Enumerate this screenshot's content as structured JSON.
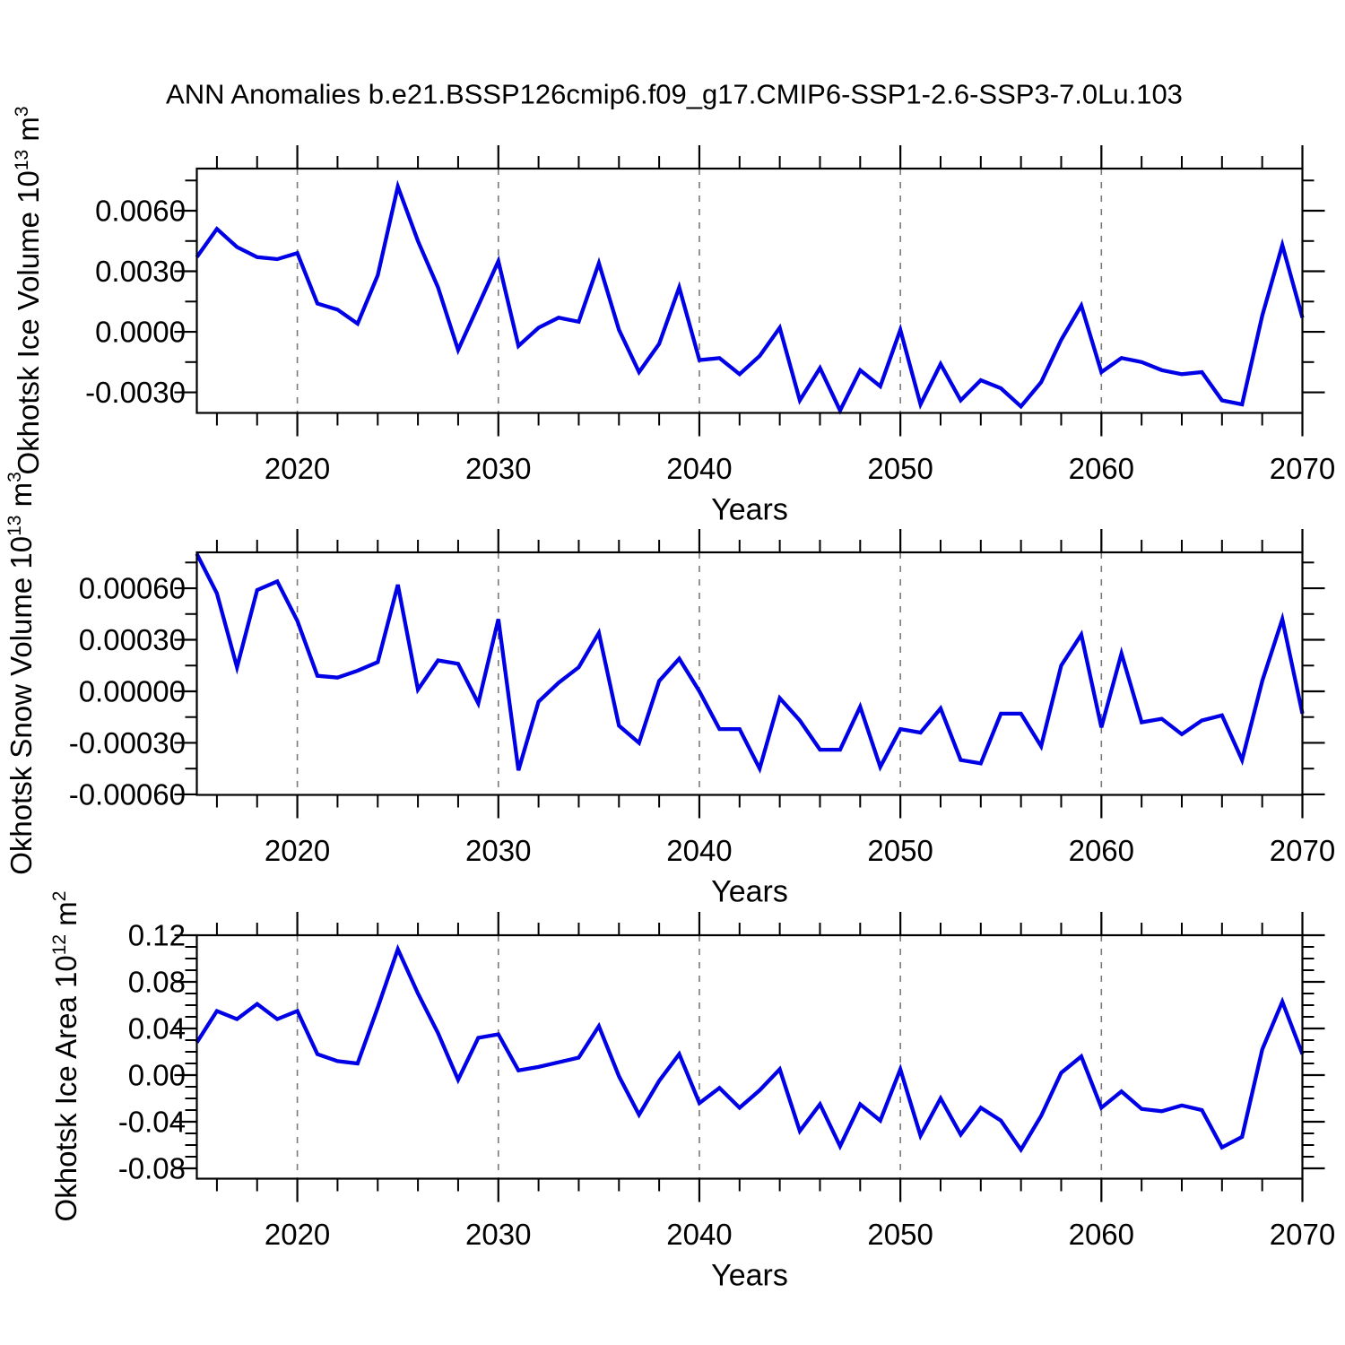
{
  "title": "ANN Anomalies b.e21.BSSP126cmip6.f09_g17.CMIP6-SSP1-2.6-SSP3-7.0Lu.103",
  "colors": {
    "line": "#0000e6",
    "axis": "#000000",
    "grid": "#7a7a7a",
    "background": "#ffffff"
  },
  "x_axis": {
    "label": "Years",
    "range": [
      2015,
      2070
    ],
    "major_tick_years": [
      2020,
      2030,
      2040,
      2050,
      2060,
      2070
    ],
    "major_tick_labels": [
      "2020",
      "2030",
      "2040",
      "2050",
      "2060",
      "2070"
    ],
    "minor_tick_step": 2,
    "grid_years": [
      2020,
      2030,
      2040,
      2050,
      2060
    ]
  },
  "years": [
    2015,
    2016,
    2017,
    2018,
    2019,
    2020,
    2021,
    2022,
    2023,
    2024,
    2025,
    2026,
    2027,
    2028,
    2029,
    2030,
    2031,
    2032,
    2033,
    2034,
    2035,
    2036,
    2037,
    2038,
    2039,
    2040,
    2041,
    2042,
    2043,
    2044,
    2045,
    2046,
    2047,
    2048,
    2049,
    2050,
    2051,
    2052,
    2053,
    2054,
    2055,
    2056,
    2057,
    2058,
    2059,
    2060,
    2061,
    2062,
    2063,
    2064,
    2065,
    2066,
    2067,
    2068,
    2069,
    2070
  ],
  "chart_data": [
    {
      "type": "line",
      "name": "okhotsk-ice-volume",
      "ylabel_prefix": "Okhotsk Ice Volume 10",
      "ylabel_exp": "13",
      "ylabel_unit": " m",
      "ylabel_unit_exp": "3",
      "xlabel": "Years",
      "ylim": [
        -0.00402,
        0.00809
      ],
      "y_major_ticks": [
        {
          "label": "0.0060",
          "value": 0.006
        },
        {
          "label": "0.0030",
          "value": 0.003
        },
        {
          "label": "0.0000",
          "value": 0.0
        },
        {
          "label": "-0.0030",
          "value": -0.003
        }
      ],
      "y_minor_tick_values": [
        0.0075,
        0.0045,
        0.0015,
        -0.0015
      ],
      "values": [
        0.0037,
        0.0051,
        0.0042,
        0.0037,
        0.0036,
        0.0039,
        0.0014,
        0.0011,
        0.0004,
        0.0028,
        0.0072,
        0.0045,
        0.0022,
        -0.0009,
        0.0013,
        0.0035,
        -0.0007,
        0.0002,
        0.0007,
        0.0005,
        0.0034,
        0.0001,
        -0.002,
        -0.0006,
        0.0022,
        -0.0014,
        -0.0013,
        -0.0021,
        -0.0012,
        0.0002,
        -0.0034,
        -0.0018,
        -0.0039,
        -0.0019,
        -0.0027,
        0.0001,
        -0.0036,
        -0.0016,
        -0.0034,
        -0.0024,
        -0.0028,
        -0.0037,
        -0.0025,
        -0.0004,
        0.0013,
        -0.002,
        -0.0013,
        -0.0015,
        -0.0019,
        -0.0021,
        -0.002,
        -0.0034,
        -0.0036,
        0.0008,
        0.0043,
        0.0007
      ]
    },
    {
      "type": "line",
      "name": "okhotsk-snow-volume",
      "ylabel_prefix": "Okhotsk Snow Volume 10",
      "ylabel_exp": "13",
      "ylabel_unit": " m",
      "ylabel_unit_exp": "3",
      "xlabel": "Years",
      "ylim": [
        -0.000603,
        0.000809
      ],
      "y_major_ticks": [
        {
          "label": "0.00060",
          "value": 0.0006
        },
        {
          "label": "0.00030",
          "value": 0.0003
        },
        {
          "label": "0.00000",
          "value": 0.0
        },
        {
          "label": "-0.00030",
          "value": -0.0003
        },
        {
          "label": "-0.00060",
          "value": -0.0006
        }
      ],
      "y_minor_tick_values": [
        0.00075,
        0.00045,
        0.00015,
        -0.00015,
        -0.00045
      ],
      "values": [
        0.0008,
        0.00057,
        0.00014,
        0.00059,
        0.00064,
        0.00041,
        9e-05,
        8e-05,
        0.00012,
        0.00017,
        0.00062,
        1e-05,
        0.00018,
        0.00016,
        -7e-05,
        0.00042,
        -0.00046,
        -6e-05,
        5e-05,
        0.00014,
        0.00034,
        -0.0002,
        -0.0003,
        6e-05,
        0.00019,
        0.0,
        -0.00022,
        -0.00022,
        -0.00045,
        -4e-05,
        -0.00017,
        -0.00034,
        -0.00034,
        -9e-05,
        -0.00044,
        -0.00022,
        -0.00024,
        -0.0001,
        -0.0004,
        -0.00042,
        -0.00013,
        -0.00013,
        -0.00032,
        0.00015,
        0.00033,
        -0.00021,
        0.00022,
        -0.00018,
        -0.00016,
        -0.00025,
        -0.00017,
        -0.00014,
        -0.0004,
        6e-05,
        0.00042,
        -0.00013
      ]
    },
    {
      "type": "line",
      "name": "okhotsk-ice-area",
      "ylabel_prefix": "Okhotsk Ice Area 10",
      "ylabel_exp": "12",
      "ylabel_unit": " m",
      "ylabel_unit_exp": "2",
      "xlabel": "Years",
      "ylim": [
        -0.08885,
        0.12
      ],
      "y_major_ticks": [
        {
          "label": "0.12",
          "value": 0.12
        },
        {
          "label": "0.08",
          "value": 0.08
        },
        {
          "label": "0.04",
          "value": 0.04
        },
        {
          "label": "0.00",
          "value": 0.0
        },
        {
          "label": "-0.04",
          "value": -0.04
        },
        {
          "label": "-0.08",
          "value": -0.08
        }
      ],
      "y_minor_tick_values": [
        0.11,
        0.1,
        0.09,
        0.07,
        0.06,
        0.05,
        0.03,
        0.02,
        0.01,
        -0.01,
        -0.02,
        -0.03,
        -0.05,
        -0.06,
        -0.07
      ],
      "values": [
        0.028,
        0.055,
        0.048,
        0.061,
        0.048,
        0.055,
        0.018,
        0.012,
        0.01,
        0.058,
        0.108,
        0.07,
        0.036,
        -0.004,
        0.032,
        0.035,
        0.004,
        0.007,
        0.011,
        0.015,
        0.042,
        -0.001,
        -0.034,
        -0.005,
        0.018,
        -0.024,
        -0.011,
        -0.028,
        -0.013,
        0.005,
        -0.048,
        -0.025,
        -0.061,
        -0.025,
        -0.039,
        0.005,
        -0.052,
        -0.02,
        -0.051,
        -0.028,
        -0.039,
        -0.064,
        -0.035,
        0.002,
        0.016,
        -0.028,
        -0.014,
        -0.029,
        -0.031,
        -0.026,
        -0.03,
        -0.062,
        -0.053,
        0.022,
        0.063,
        0.018
      ]
    }
  ]
}
